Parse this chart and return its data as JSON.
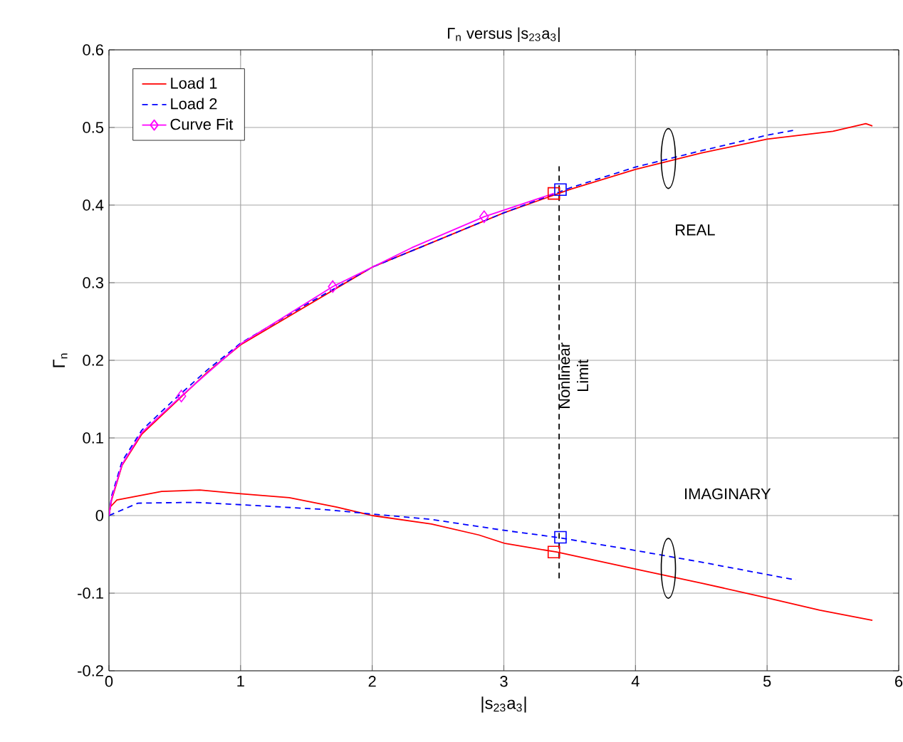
{
  "chart_data": {
    "type": "line",
    "title": "Γ$_{n}$ versus |s$_{23}$a$_{3}$|",
    "xlabel": "|s$_{23}$a$_{3}$|",
    "ylabel": "Γ$_{n}$",
    "xlim": [
      0,
      6
    ],
    "ylim": [
      -0.2,
      0.6
    ],
    "xticks": [
      0,
      1,
      2,
      3,
      4,
      5,
      6
    ],
    "yticks": [
      -0.2,
      -0.1,
      0,
      0.1,
      0.2,
      0.3,
      0.4,
      0.5,
      0.6
    ],
    "grid": true,
    "legend": "top left",
    "series": [
      {
        "name": "Load 1",
        "color": "#ff0000",
        "line_style": "solid",
        "x": [
          0,
          0.02,
          0.1,
          0.25,
          0.5,
          0.75,
          1,
          1.5,
          2,
          2.5,
          3,
          3.5,
          4,
          4.5,
          5,
          5.5,
          5.75,
          5.8
        ],
        "values": [
          0,
          0.02,
          0.065,
          0.105,
          0.145,
          0.185,
          0.22,
          0.27,
          0.32,
          0.355,
          0.39,
          0.42,
          0.446,
          0.467,
          0.485,
          0.495,
          0.505,
          0.502
        ]
      },
      {
        "name": "Load 2",
        "color": "#0000ff",
        "line_style": "dashed",
        "x": [
          0,
          0.02,
          0.1,
          0.25,
          0.5,
          0.75,
          1,
          1.5,
          2,
          2.5,
          3,
          3.5,
          4,
          4.5,
          5,
          5.22
        ],
        "values": [
          0,
          0.025,
          0.07,
          0.11,
          0.15,
          0.188,
          0.222,
          0.272,
          0.32,
          0.355,
          0.39,
          0.422,
          0.449,
          0.47,
          0.49,
          0.497
        ]
      },
      {
        "type": "line",
        "color": "#ff0000",
        "line_style": "solid",
        "x": [
          0,
          0.01,
          0.06,
          0.4,
          0.69,
          1,
          1.37,
          1.73,
          2,
          2.45,
          2.81,
          3.01,
          3.4,
          4,
          4.5,
          5,
          5.4,
          5.8
        ],
        "values": [
          0,
          0.011,
          0.02,
          0.031,
          0.033,
          0.028,
          0.023,
          0.011,
          0,
          -0.011,
          -0.025,
          -0.036,
          -0.047,
          -0.069,
          -0.087,
          -0.106,
          -0.122,
          -0.135
        ]
      },
      {
        "type": "line",
        "color": "#0000ff",
        "line_style": "dashed",
        "x": [
          0,
          0.22,
          0.65,
          1,
          1.62,
          2,
          2.45,
          3,
          3.4,
          4,
          4.5,
          5,
          5.22
        ],
        "values": [
          0,
          0.016,
          0.017,
          0.014,
          0.008,
          0.002,
          -0.005,
          -0.019,
          -0.028,
          -0.045,
          -0.06,
          -0.076,
          -0.083
        ]
      },
      {
        "name": "Curve Fit",
        "color": "#ff00ff",
        "line_style": "solid",
        "x": [
          0,
          0.02,
          0.1,
          0.25,
          0.55,
          1,
          1.7,
          2.3,
          2.85,
          3.38
        ],
        "values": [
          0,
          0.022,
          0.066,
          0.107,
          0.154,
          0.221,
          0.295,
          0.345,
          0.385,
          0.415
        ]
      },
      {
        "type": "scatter",
        "color": "#ff00ff",
        "marker": "diamond",
        "x": [
          0.55,
          1.7,
          2.85
        ],
        "values": [
          0.154,
          0.295,
          0.385
        ]
      },
      {
        "type": "scatter",
        "color": "#ff0000",
        "marker": "square",
        "x": [
          3.38,
          3.38
        ],
        "values": [
          0.415,
          -0.047
        ]
      },
      {
        "type": "scatter",
        "color": "#0000ff",
        "marker": "square",
        "x": [
          3.43,
          3.43
        ],
        "values": [
          0.42,
          -0.028
        ]
      },
      {
        "type": "line",
        "color": "#000000",
        "line_style": "dashed",
        "x": [
          3.42,
          3.42
        ],
        "values": [
          -0.081,
          0.45
        ]
      }
    ],
    "annotations": [
      "REAL",
      "IMAGINARY",
      "Nonlinear Limit"
    ]
  }
}
